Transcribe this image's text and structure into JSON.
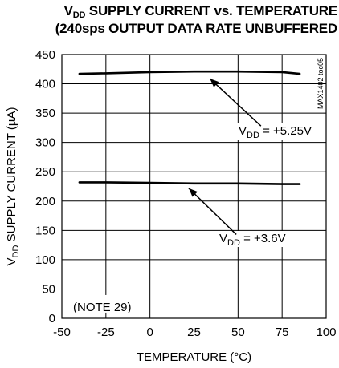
{
  "chart_data": {
    "type": "line",
    "title": {
      "line1_prefix": "V",
      "line1_sub": "DD",
      "line1_rest": " SUPPLY CURRENT vs. TEMPERATURE",
      "line2": "(240sps OUTPUT DATA RATE UNBUFFERED"
    },
    "xlabel": "TEMPERATURE (°C)",
    "ylabel": {
      "prefix": "V",
      "sub": "DD",
      "rest": " SUPPLY CURRENT (µA)"
    },
    "xlim": [
      -50,
      100
    ],
    "ylim": [
      0,
      450
    ],
    "xticks": [
      -50,
      -25,
      0,
      25,
      50,
      75,
      100
    ],
    "yticks": [
      0,
      50,
      100,
      150,
      200,
      250,
      300,
      350,
      400,
      450
    ],
    "grid": true,
    "watermark": "MAX1402 toc05",
    "note": "(NOTE 29)",
    "series": [
      {
        "name": {
          "prefix": "V",
          "sub": "DD",
          "rest": " = +5.25V"
        },
        "x": [
          -40,
          -25,
          0,
          25,
          50,
          75,
          85
        ],
        "y": [
          417,
          418,
          420,
          421,
          421,
          420,
          417
        ]
      },
      {
        "name": {
          "prefix": "V",
          "sub": "DD",
          "rest": " = +3.6V"
        },
        "x": [
          -40,
          -25,
          0,
          25,
          50,
          75,
          85
        ],
        "y": [
          232,
          232,
          231,
          230,
          230,
          229,
          229
        ]
      }
    ]
  }
}
